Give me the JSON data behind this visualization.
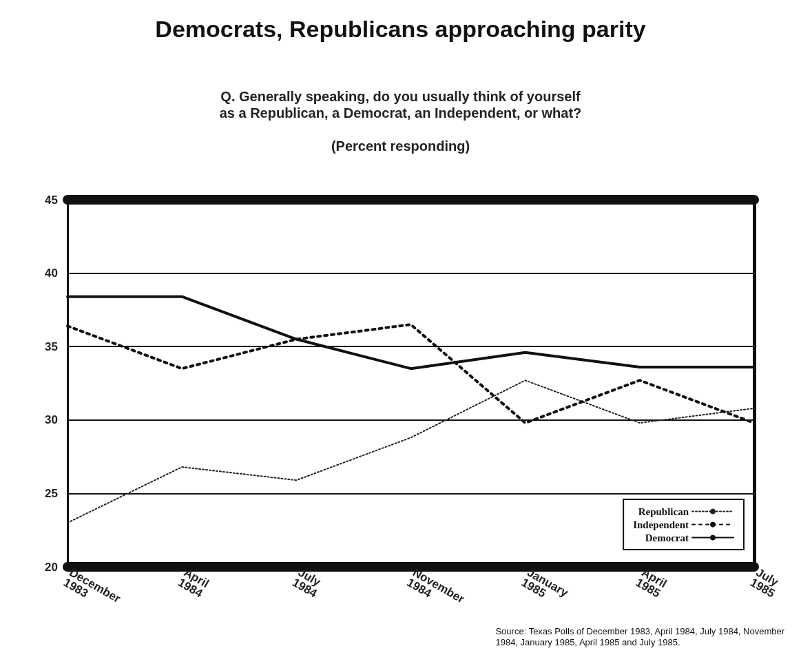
{
  "chart_data": {
    "type": "line",
    "title": "Democrats, Republicans approaching parity",
    "subtitle": "Q. Generally speaking, do you usually think of yourself\nas a Republican, a Democrat, an Independent, or what?\n\n(Percent responding)",
    "categories": [
      "December\n1983",
      "April\n1984",
      "July\n1984",
      "November\n1984",
      "January\n1985",
      "April\n1985",
      "July\n1985"
    ],
    "series": [
      {
        "name": "Republican",
        "color": "#222222",
        "line_style": "dotted",
        "values": [
          23.0,
          26.8,
          25.9,
          28.8,
          32.7,
          29.8,
          30.8
        ]
      },
      {
        "name": "Independent",
        "color": "#111111",
        "line_style": "dashed",
        "values": [
          36.4,
          33.5,
          35.5,
          36.5,
          29.8,
          32.7,
          29.8
        ]
      },
      {
        "name": "Democrat",
        "color": "#111111",
        "line_style": "solid",
        "values": [
          38.4,
          38.4,
          35.5,
          33.5,
          34.6,
          33.6,
          33.6
        ]
      }
    ],
    "ylim": [
      20,
      45
    ],
    "yticks": [
      20,
      25,
      30,
      35,
      40,
      45
    ],
    "grid": "y",
    "legend": "bottom right",
    "marker": "none",
    "annotations": [
      "Source: Texas Polls of December 1983, April 1984, July 1984, November\n1984, January 1985, April 1985 and July 1985."
    ]
  }
}
